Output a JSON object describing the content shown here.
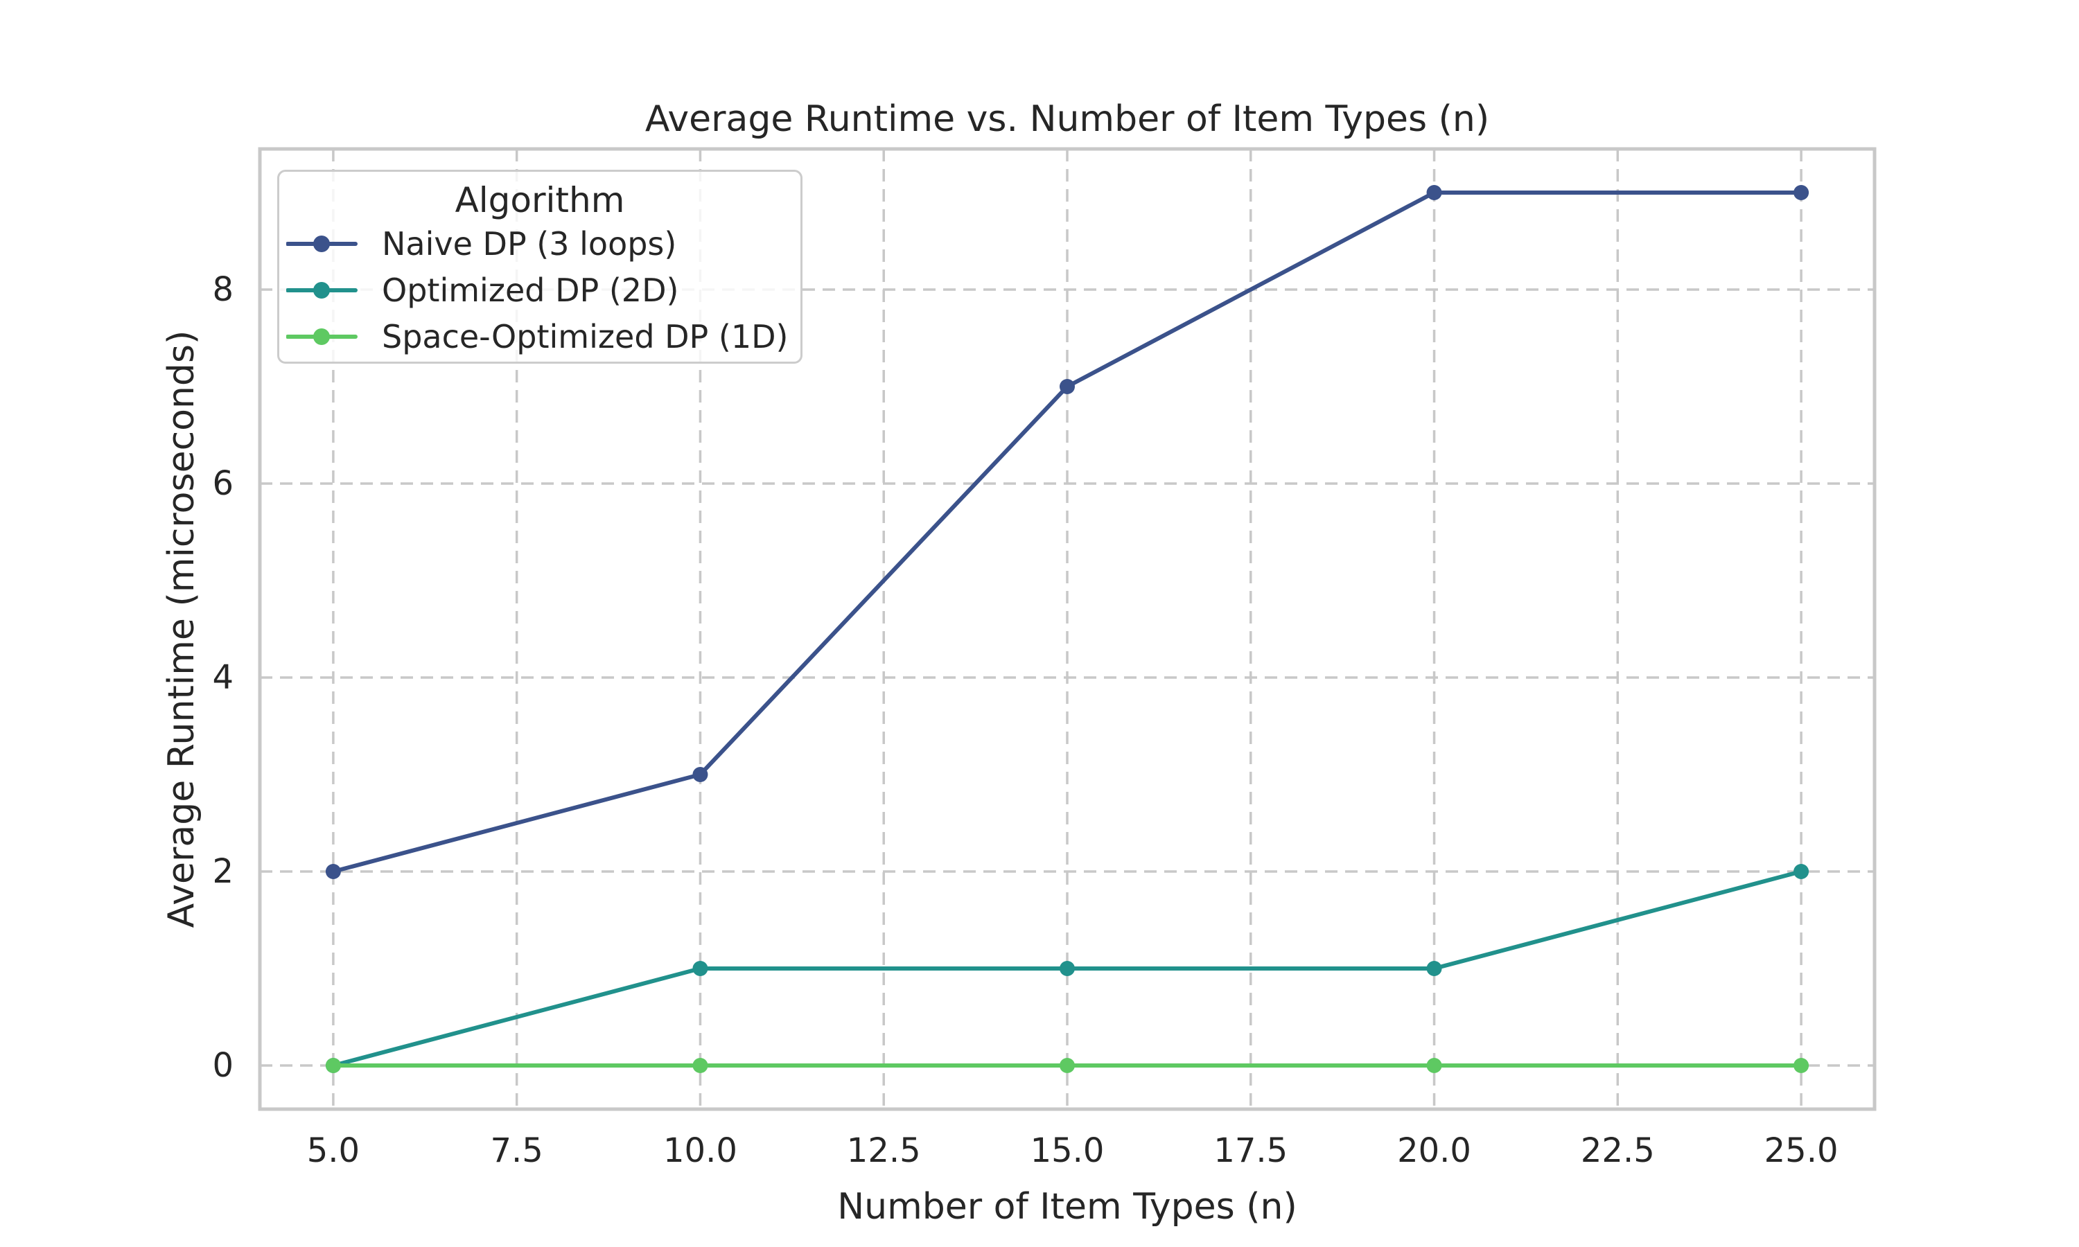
{
  "figure": {
    "background": "#ffffff",
    "text_color": "#262626",
    "grid_color": "#c8c8c8",
    "spine_color": "#c8c8c8"
  },
  "chart_data": {
    "type": "line",
    "title": "Average Runtime vs. Number of Item Types (n)",
    "xlabel": "Number of Item Types (n)",
    "ylabel": "Average Runtime (microseconds)",
    "x": [
      5,
      10,
      15,
      20,
      25
    ],
    "series": [
      {
        "name": "Naive DP (3 loops)",
        "color": "#3b528b",
        "values": [
          2,
          3,
          7,
          9,
          9
        ]
      },
      {
        "name": "Optimized DP (2D)",
        "color": "#21918c",
        "values": [
          0,
          1,
          1,
          1,
          2
        ]
      },
      {
        "name": "Space-Optimized DP (1D)",
        "color": "#5ec962",
        "values": [
          0,
          0,
          0,
          0,
          0
        ]
      }
    ],
    "x_ticks": [
      5.0,
      7.5,
      10.0,
      12.5,
      15.0,
      17.5,
      20.0,
      22.5,
      25.0
    ],
    "x_tick_labels": [
      "5.0",
      "7.5",
      "10.0",
      "12.5",
      "15.0",
      "17.5",
      "20.0",
      "22.5",
      "25.0"
    ],
    "y_ticks": [
      0,
      2,
      4,
      6,
      8
    ],
    "y_tick_labels": [
      "0",
      "2",
      "4",
      "6",
      "8"
    ],
    "xlim": [
      4.0,
      26.0
    ],
    "ylim": [
      -0.45,
      9.45
    ],
    "grid": {
      "visible": true,
      "style": "dashed"
    },
    "legend": {
      "title": "Algorithm",
      "position": "upper-left"
    }
  }
}
